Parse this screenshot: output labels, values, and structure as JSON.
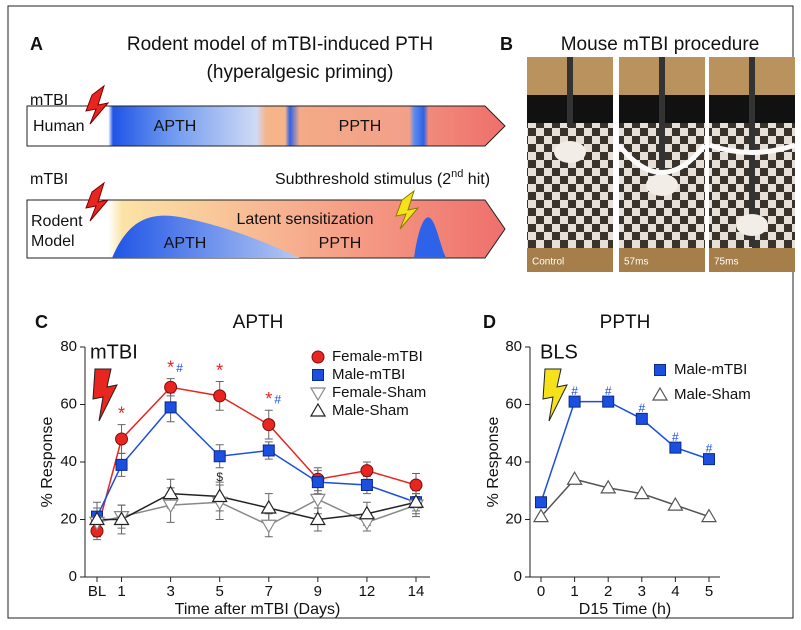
{
  "panel_a": {
    "letter": "A",
    "title": "Rodent model of mTBI-induced PTH",
    "subtitle": "(hyperalgesic priming)",
    "human": {
      "event": "mTBI",
      "label": "Human",
      "phase1": "APTH",
      "phase2": "PPTH"
    },
    "rodent": {
      "event": "mTBI",
      "second_hit_pre": "Subthreshold stimulus (2",
      "second_hit_sup": "nd",
      "second_hit_post": " hit)",
      "label_line1": "Rodent",
      "label_line2": "Model",
      "phase1": "APTH",
      "latent": "Latent sensitization",
      "phase2": "PPTH"
    }
  },
  "panel_b": {
    "letter": "B",
    "title": "Mouse mTBI procedure",
    "frames": [
      "Control",
      "57ms",
      "75ms"
    ]
  },
  "chart_data": [
    {
      "type": "line",
      "letter": "C",
      "title": "APTH",
      "event": "mTBI",
      "event_color": "#e8251f",
      "xlabel": "Time after mTBI (Days)",
      "ylabel": "% Response",
      "categories": [
        "BL",
        "1",
        "3",
        "5",
        "7",
        "9",
        "12",
        "14"
      ],
      "ylim": [
        0,
        80
      ],
      "yticks": [
        0,
        20,
        40,
        60,
        80
      ],
      "series": [
        {
          "name": "Female-mTBI",
          "color": "#e8251f",
          "marker": "circle",
          "marker_fill": "#e8251f",
          "values": [
            16,
            48,
            66,
            63,
            53,
            34,
            37,
            32
          ],
          "errors": [
            3,
            5,
            3,
            5,
            5,
            4,
            3,
            4
          ]
        },
        {
          "name": "Male-mTBI",
          "color": "#1a4fe0",
          "marker": "square",
          "marker_fill": "#1a4fe0",
          "values": [
            21,
            39,
            59,
            42,
            44,
            33,
            32,
            26
          ],
          "errors": [
            3,
            4,
            5,
            4,
            3,
            4,
            3,
            3
          ]
        },
        {
          "name": "Female-Sham",
          "color": "#888888",
          "marker": "triangle-down",
          "marker_fill": "#ffffff",
          "values": [
            19,
            21,
            25,
            26,
            18,
            27,
            19,
            25
          ],
          "errors": [
            5,
            4,
            6,
            6,
            4,
            5,
            3,
            4
          ]
        },
        {
          "name": "Male-Sham",
          "color": "#222222",
          "marker": "triangle-up",
          "marker_fill": "#ffffff",
          "values": [
            20,
            20,
            29,
            28,
            24,
            20,
            22,
            26
          ],
          "errors": [
            6,
            5,
            5,
            5,
            5,
            4,
            4,
            4
          ]
        }
      ],
      "annotations": [
        {
          "text": "*",
          "at": "1",
          "anchor": "Female-mTBI",
          "side": "above",
          "color": "#e8251f"
        },
        {
          "text": "*",
          "at": "3",
          "anchor": "Female-mTBI",
          "side": "above",
          "color": "#e8251f"
        },
        {
          "text": "#",
          "at": "3",
          "anchor": "Female-mTBI",
          "side": "above",
          "color": "#1a4fe0"
        },
        {
          "text": "*",
          "at": "5",
          "anchor": "Female-mTBI",
          "side": "above",
          "color": "#e8251f"
        },
        {
          "text": "$",
          "at": "5",
          "anchor": "Male-mTBI",
          "side": "below",
          "color": "#222222"
        },
        {
          "text": "*",
          "at": "7",
          "anchor": "Female-mTBI",
          "side": "above",
          "color": "#e8251f"
        },
        {
          "text": "#",
          "at": "7",
          "anchor": "Female-mTBI",
          "side": "above",
          "color": "#1a4fe0"
        }
      ]
    },
    {
      "type": "line",
      "letter": "D",
      "title": "PPTH",
      "event": "BLS",
      "event_color": "#f5e21a",
      "xlabel": "D15 Time (h)",
      "ylabel": "% Response",
      "x": [
        0,
        1,
        2,
        3,
        4,
        5
      ],
      "xlim": [
        0,
        5
      ],
      "xticks": [
        0,
        1,
        2,
        3,
        4,
        5
      ],
      "ylim": [
        0,
        80
      ],
      "yticks": [
        0,
        20,
        40,
        60,
        80
      ],
      "series": [
        {
          "name": "Male-mTBI",
          "color": "#1a4fe0",
          "marker": "square",
          "marker_fill": "#1a4fe0",
          "values": [
            26,
            61,
            61,
            55,
            45,
            41
          ]
        },
        {
          "name": "Male-Sham",
          "color": "#555555",
          "marker": "triangle-up",
          "marker_fill": "#ffffff",
          "values": [
            21,
            34,
            31,
            29,
            25,
            21
          ]
        }
      ],
      "annotations": [
        {
          "text": "#",
          "at": "1",
          "anchor": "Male-mTBI",
          "side": "above",
          "color": "#1a4fe0"
        },
        {
          "text": "#",
          "at": "2",
          "anchor": "Male-mTBI",
          "side": "above",
          "color": "#1a4fe0"
        },
        {
          "text": "#",
          "at": "3",
          "anchor": "Male-mTBI",
          "side": "above",
          "color": "#1a4fe0"
        },
        {
          "text": "#",
          "at": "4",
          "anchor": "Male-mTBI",
          "side": "above",
          "color": "#1a4fe0"
        },
        {
          "text": "#",
          "at": "5",
          "anchor": "Male-mTBI",
          "side": "above",
          "color": "#1a4fe0"
        }
      ]
    }
  ]
}
